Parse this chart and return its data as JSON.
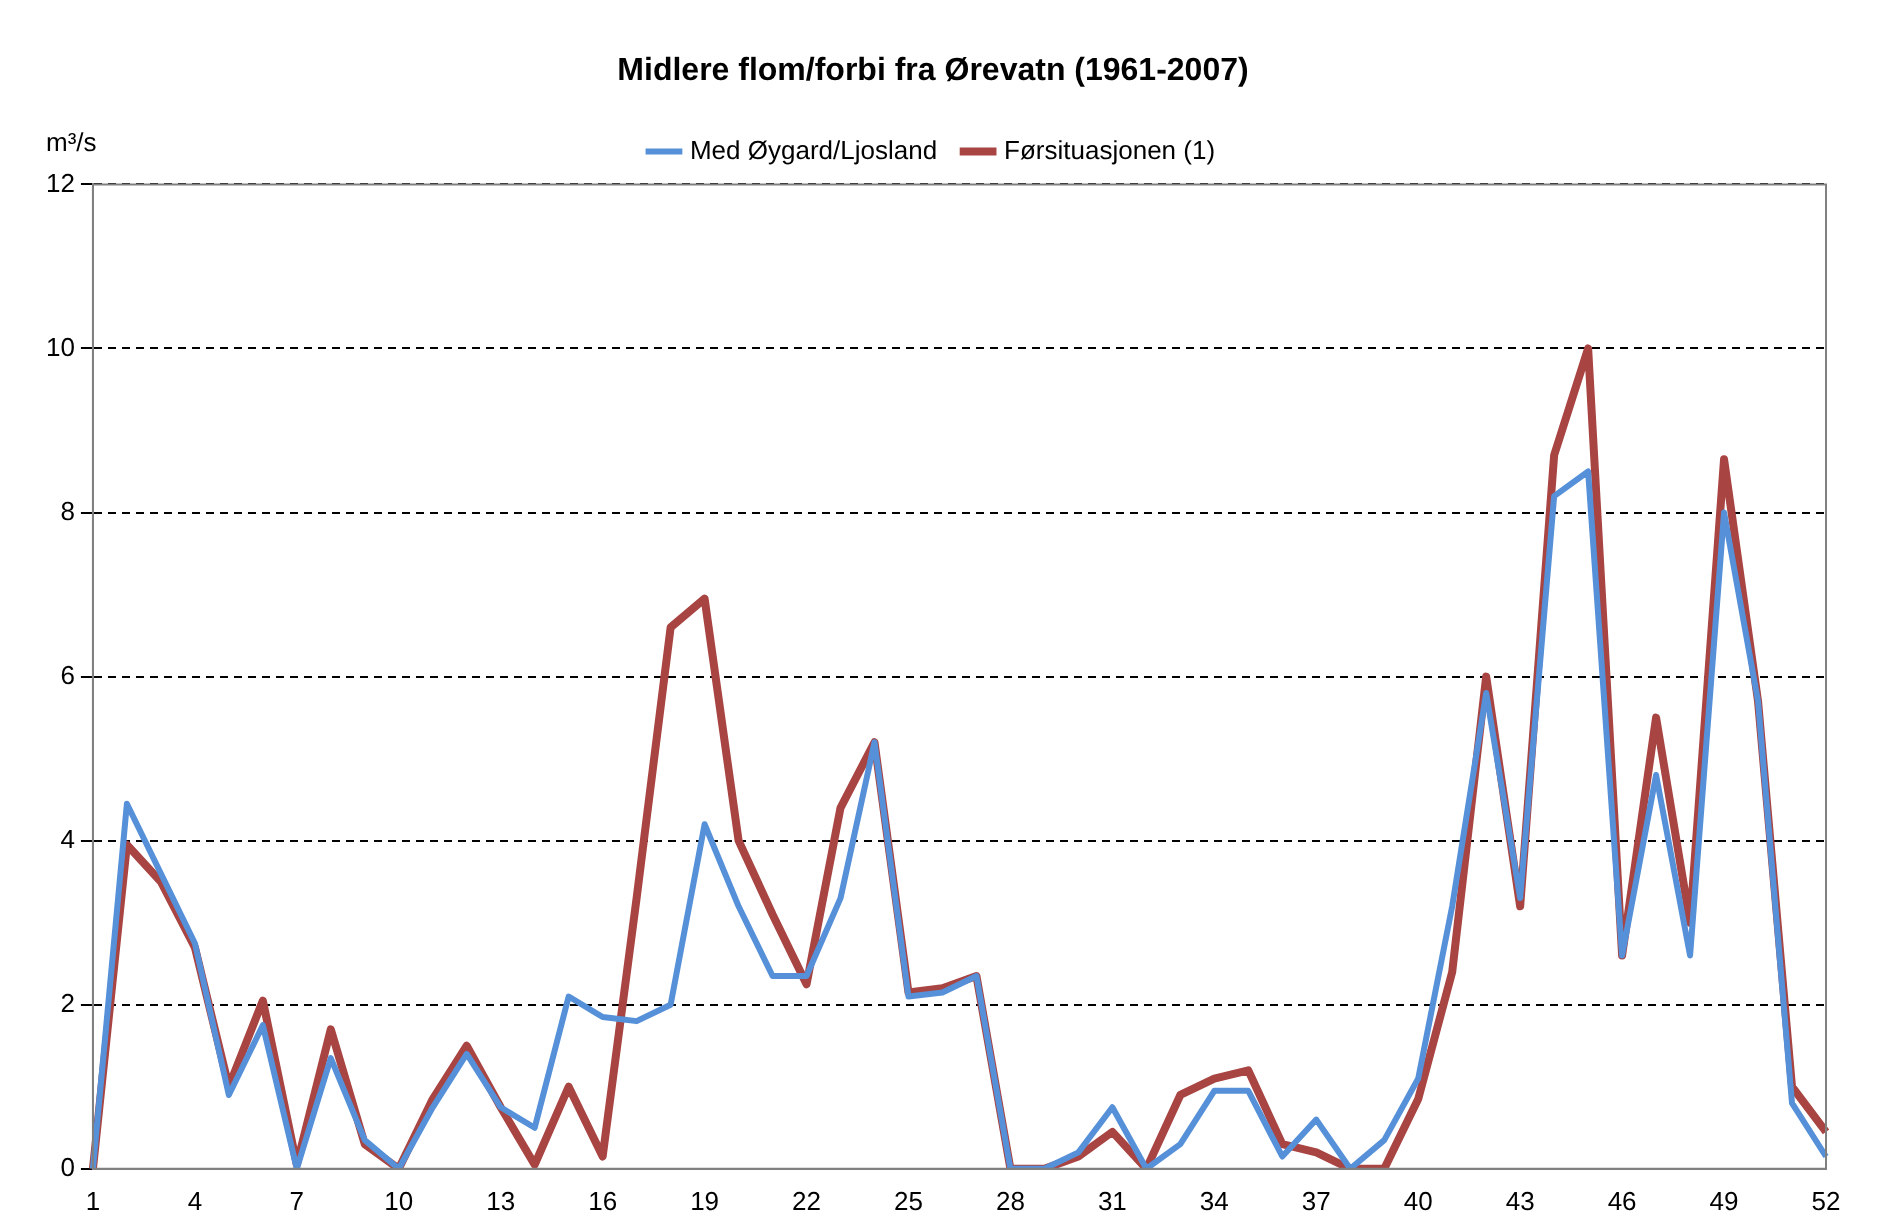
{
  "chart_data": {
    "type": "line",
    "title": "Midlere flom/forbi fra Ørevatn (1961-2007)",
    "ylabel": "m³/s",
    "categories": [
      "1",
      null,
      null,
      "4",
      null,
      null,
      "7",
      null,
      null,
      "10",
      null,
      null,
      "13",
      null,
      null,
      "16",
      null,
      null,
      "19",
      null,
      null,
      "22",
      null,
      null,
      "25",
      null,
      null,
      "28",
      null,
      null,
      "31",
      null,
      null,
      "34",
      null,
      null,
      "37",
      null,
      null,
      "40",
      null,
      null,
      "43",
      null,
      null,
      "46",
      null,
      null,
      "49",
      null,
      null,
      "52"
    ],
    "series": [
      {
        "name": "Førsituasjonen (1)",
        "color": "#a84442",
        "values": [
          0,
          3.95,
          3.5,
          2.7,
          1.0,
          2.05,
          0.05,
          1.7,
          0.3,
          0,
          0.85,
          1.5,
          0.75,
          0.05,
          1.0,
          0.15,
          3.3,
          6.6,
          6.95,
          4.0,
          3.1,
          2.25,
          4.4,
          5.2,
          2.15,
          2.2,
          2.35,
          0,
          0,
          0.15,
          0.45,
          0,
          0.9,
          1.1,
          1.2,
          0.3,
          0.2,
          0,
          0,
          0.85,
          2.4,
          6.0,
          3.2,
          8.7,
          10.0,
          2.6,
          5.5,
          3.0,
          8.65,
          5.7,
          1.0,
          0.45
        ]
      },
      {
        "name": "Med Øygard/Ljosland",
        "color": "#5590d8",
        "values": [
          0,
          4.45,
          3.6,
          2.75,
          0.9,
          1.75,
          0,
          1.35,
          0.35,
          0,
          0.75,
          1.4,
          0.75,
          0.5,
          2.1,
          1.85,
          1.8,
          2.0,
          4.2,
          3.2,
          2.35,
          2.35,
          3.3,
          5.2,
          2.1,
          2.15,
          2.35,
          0,
          0,
          0.2,
          0.75,
          0,
          0.3,
          0.95,
          0.95,
          0.15,
          0.6,
          0,
          0.35,
          1.1,
          3.2,
          5.8,
          3.3,
          8.2,
          8.5,
          2.6,
          4.8,
          2.6,
          8.0,
          5.7,
          0.8,
          0.15
        ]
      }
    ],
    "ylim": [
      0,
      12
    ],
    "yticks": [
      0,
      2,
      4,
      6,
      8,
      10,
      12
    ],
    "grid": "y",
    "legend": "top",
    "marker": "none",
    "line_style": "solid"
  }
}
